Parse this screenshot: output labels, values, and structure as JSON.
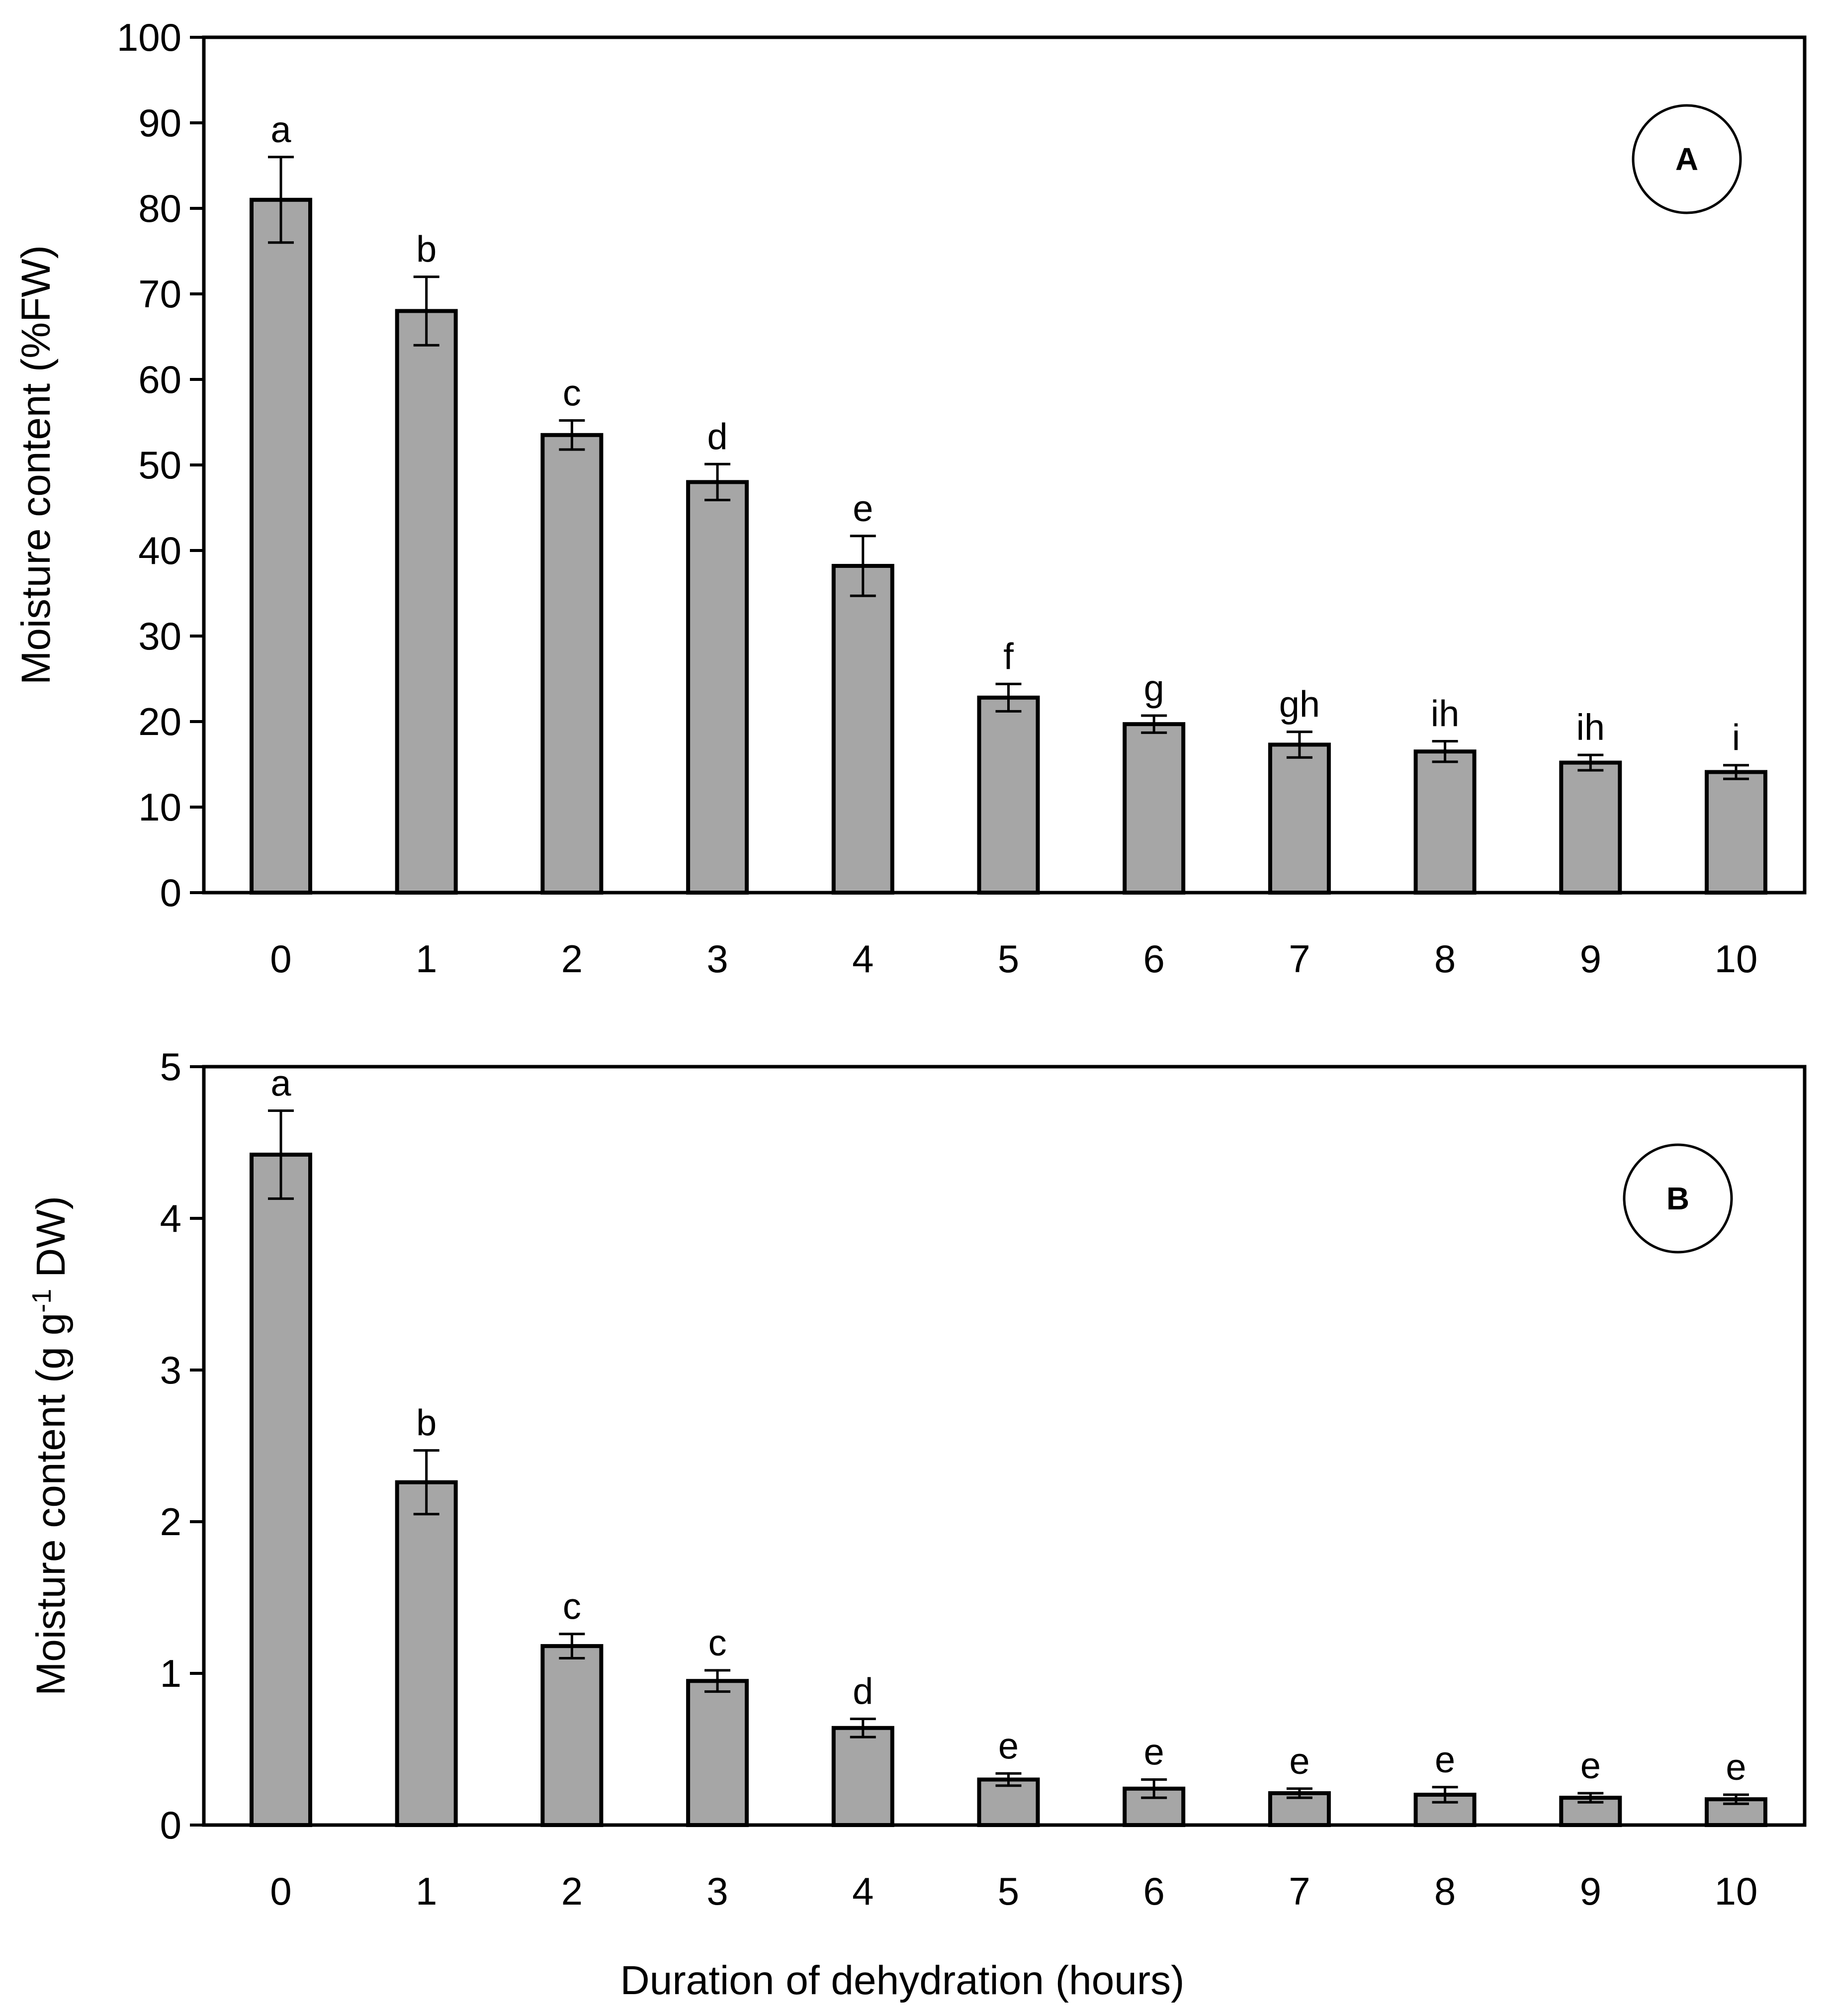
{
  "chart_data": [
    {
      "type": "bar",
      "panel_label": "A",
      "categories": [
        "0",
        "1",
        "2",
        "3",
        "4",
        "5",
        "6",
        "7",
        "8",
        "9",
        "10"
      ],
      "values": [
        81,
        68,
        53.5,
        48,
        38.2,
        22.8,
        19.7,
        17.3,
        16.5,
        15.2,
        14.1
      ],
      "errors": [
        5,
        4,
        1.7,
        2.1,
        3.5,
        1.6,
        1,
        1.5,
        1.2,
        0.9,
        0.8
      ],
      "significance": [
        "a",
        "b",
        "c",
        "d",
        "e",
        "f",
        "g",
        "gh",
        "ih",
        "ih",
        "i"
      ],
      "ylabel": "Moisture content (%FW)",
      "ylim": [
        0,
        100
      ],
      "yticks": [
        "0",
        "10",
        "20",
        "30",
        "40",
        "50",
        "60",
        "70",
        "80",
        "90",
        "100"
      ],
      "bar_color": "#a6a6a6"
    },
    {
      "type": "bar",
      "panel_label": "B",
      "categories": [
        "0",
        "1",
        "2",
        "3",
        "4",
        "5",
        "6",
        "7",
        "8",
        "9",
        "10"
      ],
      "values": [
        4.42,
        2.26,
        1.18,
        0.95,
        0.64,
        0.3,
        0.24,
        0.21,
        0.2,
        0.18,
        0.17
      ],
      "errors": [
        0.29,
        0.21,
        0.08,
        0.07,
        0.06,
        0.04,
        0.06,
        0.03,
        0.05,
        0.03,
        0.03
      ],
      "significance": [
        "a",
        "b",
        "c",
        "c",
        "d",
        "e",
        "e",
        "e",
        "e",
        "e",
        "e"
      ],
      "ylabel_main": "Moisture content (g g",
      "ylabel_sup": "-1",
      "ylabel_tail": " DW)",
      "ylim": [
        0,
        5
      ],
      "yticks": [
        "0",
        "1",
        "2",
        "3",
        "4",
        "5"
      ],
      "bar_color": "#a6a6a6"
    }
  ],
  "xlabel": "Duration of dehydration (hours)"
}
